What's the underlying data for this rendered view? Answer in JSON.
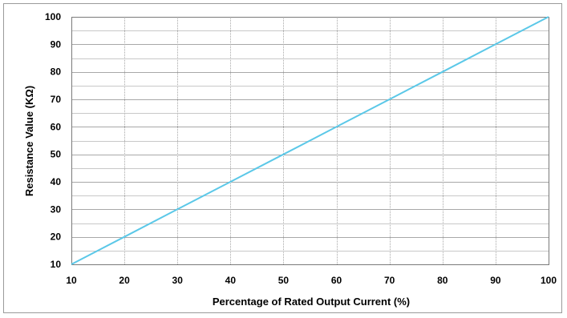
{
  "chart_data": {
    "type": "line",
    "title": "",
    "xlabel": "Percentage of Rated Output Current (%)",
    "ylabel": "Resistance Value (KΩ)",
    "xlim": [
      10,
      100
    ],
    "ylim": [
      10,
      100
    ],
    "xticks": [
      "10",
      "20",
      "30",
      "40",
      "50",
      "60",
      "70",
      "80",
      "90",
      "100"
    ],
    "yticks": [
      "10",
      "20",
      "30",
      "40",
      "50",
      "60",
      "70",
      "80",
      "90",
      "100"
    ],
    "grid": true,
    "legend": "none",
    "series": [
      {
        "x": [
          10,
          20,
          30,
          40,
          50,
          60,
          70,
          80,
          90,
          100
        ],
        "y": [
          10,
          20,
          30,
          40,
          50,
          60,
          70,
          80,
          90,
          100
        ],
        "color": "#5bc8e8"
      }
    ],
    "colors": {
      "grid_major": "#a8a8a8",
      "grid_minor": "#c8c8c8",
      "axis": "#7a7a7a",
      "line": "#5bc8e8"
    }
  }
}
